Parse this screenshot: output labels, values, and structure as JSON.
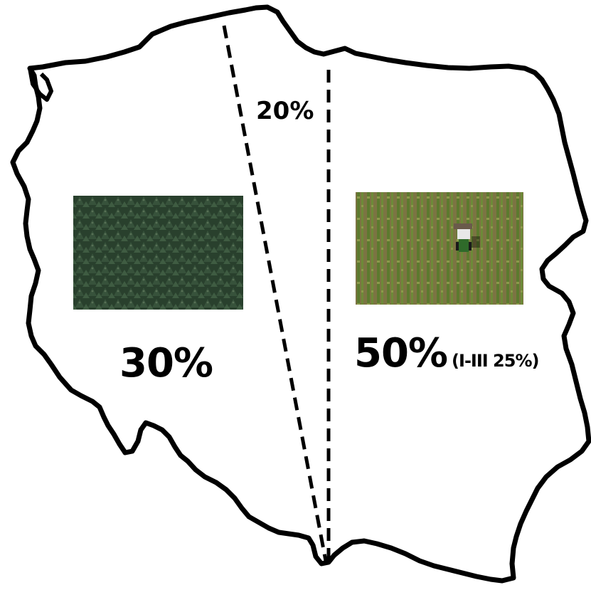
{
  "labels": {
    "forest_share": "30%",
    "middle_share": "20%",
    "agri_share": "50%",
    "agri_sub": "(I-III 25%)"
  },
  "images": {
    "forest_photo": "aerial-conifer-forest",
    "field_photo": "aerial-tractor-in-crop-field"
  },
  "colors": {
    "outline": "#000000",
    "background": "#ffffff",
    "forest_dark": "#2f4a33",
    "field_green": "#6b7d3a",
    "field_soil": "#7a6a45"
  }
}
